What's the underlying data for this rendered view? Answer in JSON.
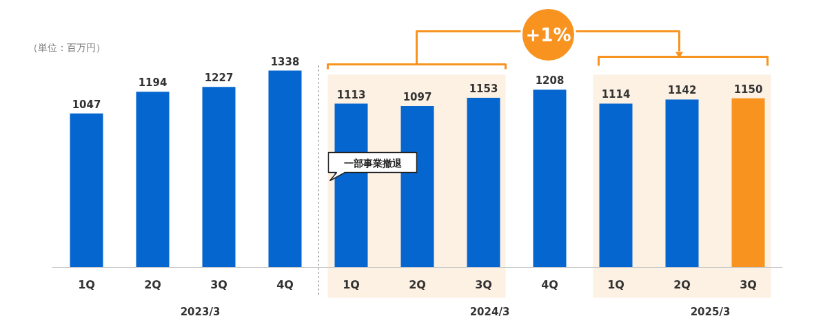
{
  "chart_data": {
    "type": "bar",
    "categories": [
      "1Q",
      "2Q",
      "3Q",
      "4Q",
      "1Q",
      "2Q",
      "3Q",
      "4Q",
      "1Q",
      "2Q",
      "3Q"
    ],
    "values": [
      1047,
      1194,
      1227,
      1338,
      1113,
      1097,
      1153,
      1208,
      1114,
      1142,
      1150
    ],
    "colors": [
      "#0566cf",
      "#0566cf",
      "#0566cf",
      "#0566cf",
      "#0566cf",
      "#0566cf",
      "#0566cf",
      "#0566cf",
      "#0566cf",
      "#0566cf",
      "#f7931e"
    ],
    "data_labels": true,
    "grid": false,
    "annotations": [
      "（単位：百万円）",
      "2023/3",
      "2024/3",
      "2025/3",
      "+1%",
      "一部事業撤退"
    ]
  }
}
